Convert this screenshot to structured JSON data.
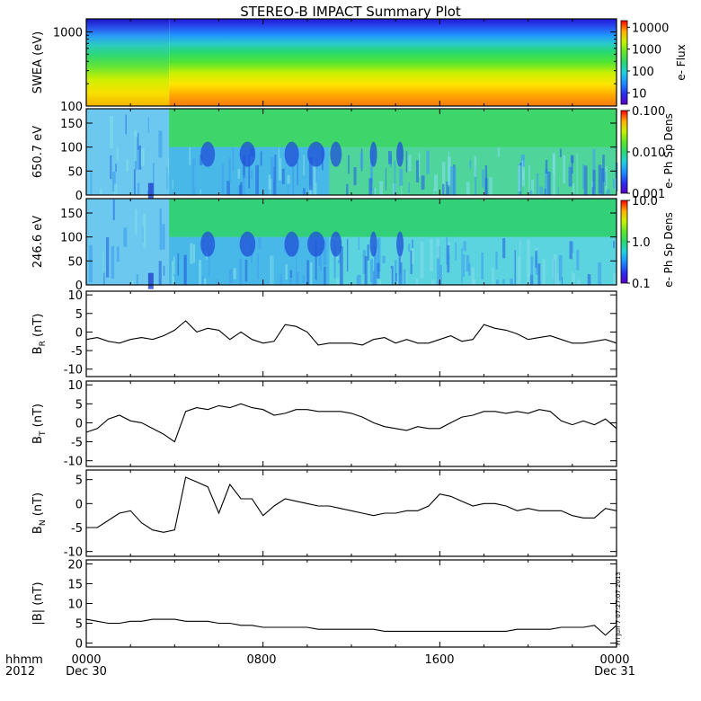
{
  "title": "STEREO-B IMPACT Summary Plot",
  "footer": {
    "hhmm_label": "hhmm",
    "year_label": "2012",
    "x_ticks": [
      "0000",
      "0800",
      "1600",
      "0000"
    ],
    "x_dates": [
      "Dec 30",
      "",
      "",
      "Dec 31"
    ]
  },
  "timestamp": "Fri Jun  7 07:27:07 2013",
  "chart_data": [
    {
      "type": "heatmap",
      "ylabel": "SWEA (eV)",
      "y_scale": "log",
      "ylim": [
        100,
        1500
      ],
      "y_ticks": [
        {
          "v": 1000,
          "label": "1000"
        },
        {
          "v": 100,
          "label": "100"
        }
      ],
      "colorbar": {
        "label": "e- Flux",
        "scale": "log",
        "range": [
          3,
          20000
        ],
        "ticks": [
          {
            "v": 10000,
            "label": "10000"
          },
          {
            "v": 1000,
            "label": "1000"
          },
          {
            "v": 100,
            "label": "100"
          },
          {
            "v": 10,
            "label": "10"
          }
        ]
      }
    },
    {
      "type": "heatmap",
      "ylabel": "650.7 eV",
      "ylim": [
        0,
        180
      ],
      "y_ticks": [
        {
          "v": 150,
          "label": "150"
        },
        {
          "v": 100,
          "label": "100"
        },
        {
          "v": 50,
          "label": "50"
        },
        {
          "v": 0,
          "label": "0"
        }
      ],
      "colorbar": {
        "label": "e- Ph Sp Dens",
        "scale": "log",
        "range": [
          0.001,
          0.1
        ],
        "ticks": [
          {
            "v": 0.1,
            "label": "0.100"
          },
          {
            "v": 0.01,
            "label": "0.010"
          },
          {
            "v": 0.001,
            "label": "0.001"
          }
        ]
      }
    },
    {
      "type": "heatmap",
      "ylabel": "246.6 eV",
      "ylim": [
        0,
        180
      ],
      "y_ticks": [
        {
          "v": 150,
          "label": "150"
        },
        {
          "v": 100,
          "label": "100"
        },
        {
          "v": 50,
          "label": "50"
        },
        {
          "v": 0,
          "label": "0"
        }
      ],
      "colorbar": {
        "label": "e- Ph Sp Dens",
        "scale": "log",
        "range": [
          0.1,
          10
        ],
        "ticks": [
          {
            "v": 10,
            "label": "10.0"
          },
          {
            "v": 1,
            "label": "1.0"
          },
          {
            "v": 0.1,
            "label": "0.1"
          }
        ]
      }
    },
    {
      "type": "line",
      "ylabel": "B",
      "ylabel_sub": "R",
      "ylabel_unit": "(nT)",
      "ylim": [
        -12,
        11
      ],
      "y_ticks": [
        {
          "v": 10,
          "label": "10"
        },
        {
          "v": 5,
          "label": "5"
        },
        {
          "v": 0,
          "label": "0"
        },
        {
          "v": -5,
          "label": "-5"
        },
        {
          "v": -10,
          "label": "-10"
        }
      ],
      "x": [
        0,
        0.5,
        1,
        1.5,
        2,
        2.5,
        3,
        3.5,
        4,
        4.5,
        5,
        5.5,
        6,
        6.5,
        7,
        7.5,
        8,
        8.5,
        9,
        9.5,
        10,
        10.5,
        11,
        11.5,
        12,
        12.5,
        13,
        13.5,
        14,
        14.5,
        15,
        15.5,
        16,
        16.5,
        17,
        17.5,
        18,
        18.5,
        19,
        19.5,
        20,
        20.5,
        21,
        21.5,
        22,
        22.5,
        23,
        23.5,
        24
      ],
      "y": [
        -2,
        -1.5,
        -2.5,
        -3,
        -2,
        -1.5,
        -2,
        -1,
        0.5,
        3,
        0,
        1,
        0.5,
        -2,
        0,
        -2,
        -3,
        -2.5,
        2,
        1.5,
        0,
        -3.5,
        -3,
        -3,
        -3,
        -3.5,
        -2,
        -1.5,
        -3,
        -2,
        -3,
        -3,
        -2,
        -1,
        -2.5,
        -2,
        2,
        1,
        0.5,
        -0.5,
        -2,
        -1.5,
        -1,
        -2,
        -3,
        -3,
        -2.5,
        -2,
        -3
      ]
    },
    {
      "type": "line",
      "ylabel": "B",
      "ylabel_sub": "T",
      "ylabel_unit": "(nT)",
      "ylim": [
        -11.5,
        11
      ],
      "y_ticks": [
        {
          "v": 10,
          "label": "10"
        },
        {
          "v": 5,
          "label": "5"
        },
        {
          "v": 0,
          "label": "0"
        },
        {
          "v": -5,
          "label": "-5"
        },
        {
          "v": -10,
          "label": "-10"
        }
      ],
      "x": [
        0,
        0.5,
        1,
        1.5,
        2,
        2.5,
        3,
        3.5,
        4,
        4.5,
        5,
        5.5,
        6,
        6.5,
        7,
        7.5,
        8,
        8.5,
        9,
        9.5,
        10,
        10.5,
        11,
        11.5,
        12,
        12.5,
        13,
        13.5,
        14,
        14.5,
        15,
        15.5,
        16,
        16.5,
        17,
        17.5,
        18,
        18.5,
        19,
        19.5,
        20,
        20.5,
        21,
        21.5,
        22,
        22.5,
        23,
        23.5,
        24
      ],
      "y": [
        -2.5,
        -1.5,
        1,
        2,
        0.5,
        0,
        -1.5,
        -3,
        -5,
        3,
        4,
        3.5,
        4.5,
        4,
        5,
        4,
        3.5,
        2,
        2.5,
        3.5,
        3.5,
        3,
        3,
        3,
        2.5,
        1.5,
        0,
        -1,
        -1.5,
        -2,
        -1,
        -1.5,
        -1.5,
        0,
        1.5,
        2,
        3,
        3,
        2.5,
        3,
        2.5,
        3.5,
        3,
        0.5,
        -0.5,
        0.5,
        -0.5,
        1,
        -1.5
      ]
    },
    {
      "type": "line",
      "ylabel": "B",
      "ylabel_sub": "N",
      "ylabel_unit": "(nT)",
      "ylim": [
        -11,
        7
      ],
      "y_ticks": [
        {
          "v": 5,
          "label": "5"
        },
        {
          "v": 0,
          "label": "0"
        },
        {
          "v": -5,
          "label": "-5"
        },
        {
          "v": -10,
          "label": "-10"
        }
      ],
      "x": [
        0,
        0.5,
        1,
        1.5,
        2,
        2.5,
        3,
        3.5,
        4,
        4.5,
        5,
        5.5,
        6,
        6.5,
        7,
        7.5,
        8,
        8.5,
        9,
        9.5,
        10,
        10.5,
        11,
        11.5,
        12,
        12.5,
        13,
        13.5,
        14,
        14.5,
        15,
        15.5,
        16,
        16.5,
        17,
        17.5,
        18,
        18.5,
        19,
        19.5,
        20,
        20.5,
        21,
        21.5,
        22,
        22.5,
        23,
        23.5,
        24
      ],
      "y": [
        -5,
        -5,
        -3.5,
        -2,
        -1.5,
        -4,
        -5.5,
        -6,
        -5.5,
        5.5,
        4.5,
        3.5,
        -2,
        4,
        1,
        1,
        -2.5,
        -0.5,
        1,
        0.5,
        0,
        -0.5,
        -0.5,
        -1,
        -1.5,
        -2,
        -2.5,
        -2,
        -2,
        -1.5,
        -1.5,
        -0.5,
        2,
        1.5,
        0.5,
        -0.5,
        0,
        0,
        -0.5,
        -1.5,
        -1,
        -1.5,
        -1.5,
        -1.5,
        -2.5,
        -3,
        -3,
        -1,
        -1.5
      ]
    },
    {
      "type": "line",
      "ylabel": "|B| (nT)",
      "ylim": [
        -1,
        21
      ],
      "y_ticks": [
        {
          "v": 20,
          "label": "20"
        },
        {
          "v": 15,
          "label": "15"
        },
        {
          "v": 10,
          "label": "10"
        },
        {
          "v": 5,
          "label": "5"
        },
        {
          "v": 0,
          "label": "0"
        }
      ],
      "x": [
        0,
        0.5,
        1,
        1.5,
        2,
        2.5,
        3,
        3.5,
        4,
        4.5,
        5,
        5.5,
        6,
        6.5,
        7,
        7.5,
        8,
        8.5,
        9,
        9.5,
        10,
        10.5,
        11,
        11.5,
        12,
        12.5,
        13,
        13.5,
        14,
        14.5,
        15,
        15.5,
        16,
        16.5,
        17,
        17.5,
        18,
        18.5,
        19,
        19.5,
        20,
        20.5,
        21,
        21.5,
        22,
        22.5,
        23,
        23.5,
        24
      ],
      "y": [
        6,
        5.5,
        5,
        5,
        5.5,
        5.5,
        6,
        6,
        6,
        5.5,
        5.5,
        5.5,
        5,
        5,
        4.5,
        4.5,
        4,
        4,
        4,
        4,
        4,
        3.5,
        3.5,
        3.5,
        3.5,
        3.5,
        3.5,
        3,
        3,
        3,
        3,
        3,
        3,
        3,
        3,
        3,
        3,
        3,
        3,
        3.5,
        3.5,
        3.5,
        3.5,
        4,
        4,
        4,
        4.5,
        2,
        4.5
      ]
    }
  ]
}
